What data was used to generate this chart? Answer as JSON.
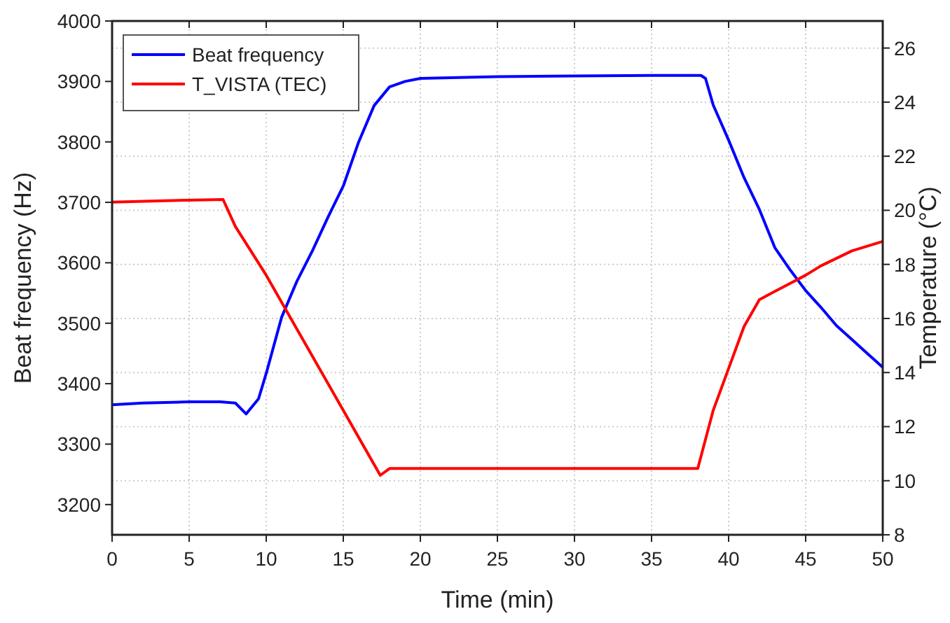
{
  "chart_data": {
    "type": "line",
    "xlabel": "Time (min)",
    "ylabel": "Beat frequency (Hz)",
    "y2label": "Temperature (°C)",
    "xlim": [
      0,
      50
    ],
    "xticks": [
      0,
      5,
      10,
      15,
      20,
      25,
      30,
      35,
      40,
      45,
      50
    ],
    "ylim": [
      3150,
      4000
    ],
    "yticks": [
      3200,
      3300,
      3400,
      3500,
      3600,
      3700,
      3800,
      3900,
      4000
    ],
    "y2lim": [
      8,
      27
    ],
    "y2ticks": [
      8,
      10,
      12,
      14,
      16,
      18,
      20,
      22,
      24,
      26
    ],
    "grid": true,
    "legend": "top left",
    "marker": "none",
    "line_style": "solid",
    "series": [
      {
        "name": "Beat frequency",
        "color": "#0000ff",
        "x": [
          0,
          2,
          5,
          7,
          8,
          8.7,
          9.5,
          10,
          11,
          12,
          13,
          14,
          15,
          16,
          17,
          18,
          19,
          20,
          25,
          30,
          35,
          38.2,
          38.5,
          39,
          40,
          41,
          42,
          43,
          44,
          45,
          46,
          47,
          48,
          49,
          50
        ],
        "values": [
          3365,
          3368,
          3370,
          3370,
          3368,
          3350,
          3375,
          3417,
          3510,
          3570,
          3620,
          3675,
          3727,
          3800,
          3860,
          3891,
          3900,
          3905,
          3908,
          3909,
          3910,
          3910,
          3905,
          3861,
          3803,
          3741,
          3688,
          3625,
          3588,
          3554,
          3526,
          3496,
          3473,
          3450,
          3427
        ]
      },
      {
        "name": "T_VISTA (TEC)",
        "color": "#ff0000",
        "axis": "y2",
        "x": [
          0,
          3,
          7.2,
          8,
          10,
          12,
          15,
          17.4,
          18,
          20,
          30,
          38,
          39,
          40,
          41,
          42,
          43,
          44,
          45,
          46,
          48,
          50
        ],
        "values": [
          20.3,
          20.35,
          20.4,
          19.4,
          17.6,
          15.6,
          12.6,
          10.2,
          10.45,
          10.45,
          10.45,
          10.45,
          12.6,
          14.15,
          15.7,
          16.7,
          17.0,
          17.3,
          17.6,
          17.95,
          18.5,
          18.85
        ]
      }
    ]
  }
}
